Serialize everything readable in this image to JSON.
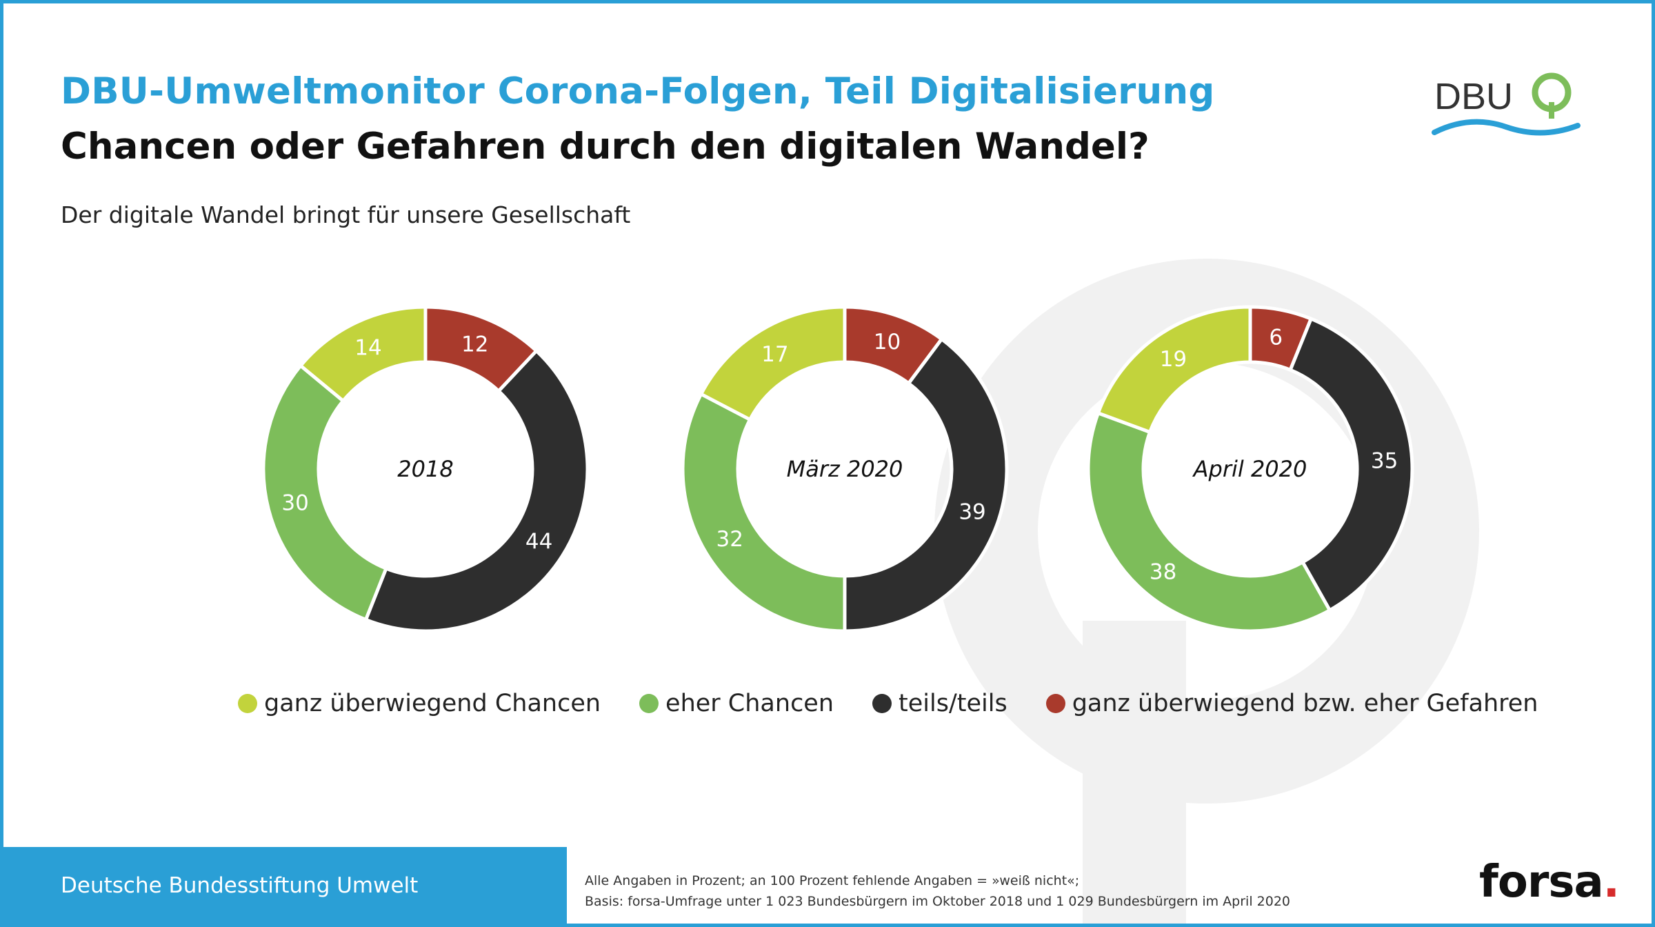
{
  "header": {
    "title": "DBU-Umweltmonitor Corona-Folgen, Teil Digitalisierung",
    "subtitle": "Chancen oder Gefahren durch den digitalen Wandel?",
    "question": "Der digitale Wandel bringt für unsere Gesellschaft"
  },
  "logo": {
    "text": "DBU",
    "icon": "tree-icon"
  },
  "colors": {
    "accent": "#2a9fd6",
    "ganz_chancen": "#c2d33c",
    "eher_chancen": "#7dbd5a",
    "teils": "#2e2e2e",
    "gefahren": "#a93a2c"
  },
  "chart_data": [
    {
      "type": "pie",
      "donut": true,
      "title": "2018",
      "categories": [
        "ganz überwiegend Chancen",
        "eher Chancen",
        "teils/teils",
        "ganz überwiegend bzw. eher Gefahren"
      ],
      "values": [
        14,
        30,
        44,
        12
      ]
    },
    {
      "type": "pie",
      "donut": true,
      "title": "März 2020",
      "categories": [
        "ganz überwiegend Chancen",
        "eher Chancen",
        "teils/teils",
        "ganz überwiegend bzw. eher Gefahren"
      ],
      "values": [
        17,
        32,
        39,
        10
      ]
    },
    {
      "type": "pie",
      "donut": true,
      "title": "April 2020",
      "categories": [
        "ganz überwiegend Chancen",
        "eher Chancen",
        "teils/teils",
        "ganz überwiegend bzw. eher Gefahren"
      ],
      "values": [
        19,
        38,
        35,
        6
      ]
    }
  ],
  "legend": [
    {
      "label": "ganz überwiegend Chancen",
      "color": "#c2d33c"
    },
    {
      "label": "eher Chancen",
      "color": "#7dbd5a"
    },
    {
      "label": "teils/teils",
      "color": "#2e2e2e"
    },
    {
      "label": "ganz überwiegend bzw. eher Gefahren",
      "color": "#a93a2c"
    }
  ],
  "footer": {
    "organization": "Deutsche Bundesstiftung Umwelt",
    "note_1": "Alle Angaben in Prozent; an 100 Prozent fehlende Angaben = »weiß nicht«;",
    "note_2": "Basis: forsa-Umfrage unter 1 023 Bundesbürgern im Oktober 2018 und 1 029 Bundesbürgern im April 2020",
    "brand": "forsa",
    "brand_dot": "."
  }
}
